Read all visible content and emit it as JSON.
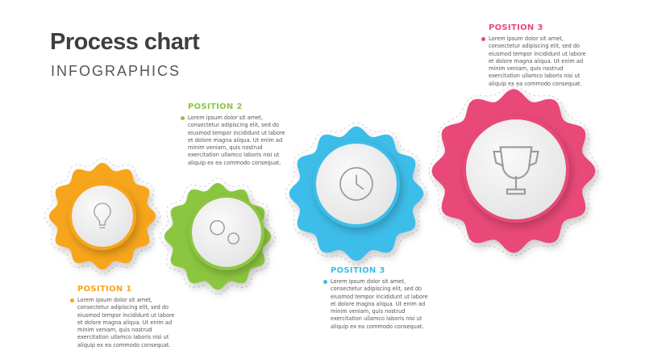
{
  "header": {
    "title": "Process chart",
    "subtitle": "INFOGRAPHICS"
  },
  "steps": [
    {
      "title": "POSITION 1",
      "color": "#f7a51c",
      "icon": "lightbulb-icon",
      "lines": [
        "Lorem ipsum dolor sit amet,",
        "consectetur adipiscing elit, sed do",
        "eiusmod tempor incididunt ut labore",
        "et dolore magna aliqua. Ut enim ad",
        "minim veniam, quis nostrud",
        "exercitation ullamco laboris nisi ut",
        "aliquip ex ea commodo consequat."
      ]
    },
    {
      "title": "POSITION 2",
      "color": "#8cc63f",
      "icon": "gears-icon",
      "lines": [
        "Lorem ipsum dolor sit amet,",
        "consectetur adipiscing elit, sed do",
        "eiusmod tempor incididunt ut labore",
        "et dolore magna aliqua. Ut enim ad",
        "minim veniam, quis nostrud",
        "exercitation ullamco laboris nisi ut",
        "aliquip ex ea commodo consequat."
      ]
    },
    {
      "title": "POSITION 3",
      "color": "#3dbde9",
      "icon": "clock-icon",
      "lines": [
        "Lorem ipsum dolor sit amet,",
        "consectetur adipiscing elit, sed do",
        "eiusmod tempor incididunt ut labore",
        "et dolore magna aliqua. Ut enim ad",
        "minim veniam, quis nostrud",
        "exercitation ullamco laboris nisi ut",
        "aliquip ex ea commodo consequat."
      ]
    },
    {
      "title": "POSITION 3",
      "color": "#e84a78",
      "icon": "trophy-icon",
      "lines": [
        "Lorem ipsum dolor sit amet,",
        "consectetur adipiscing elit, sed do",
        "eiusmod tempor incididunt ut labore",
        "et dolore magna aliqua. Ut enim ad",
        "minim veniam, quis nostrud",
        "exercitation ullamco laboris nisi ut",
        "aliquip ex ea commodo consequat."
      ]
    }
  ]
}
